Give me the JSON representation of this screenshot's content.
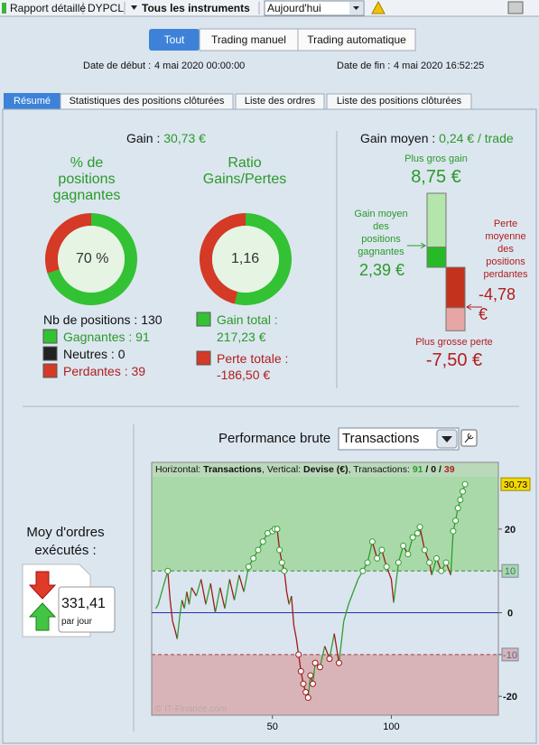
{
  "toolbar": {
    "report": "Rapport détaillé",
    "account": "DYPCL",
    "instruments": "Tous les instruments",
    "period": "Aujourd'hui"
  },
  "mode_tabs": [
    "Tout",
    "Trading manuel",
    "Trading automatique"
  ],
  "dates": {
    "start_label": "Date de début :",
    "start": "4 mai 2020 00:00:00",
    "end_label": "Date de fin :",
    "end": "4 mai 2020 16:52:25"
  },
  "tabs": [
    "Résumé",
    "Statistiques des positions clôturées",
    "Liste des ordres",
    "Liste des positions clôturées"
  ],
  "summary": {
    "gain_label": "Gain :",
    "gain": "30,73 €",
    "win_rate": {
      "title": "% de positions gagnantes",
      "label": "70 %"
    },
    "ratio": {
      "title": "Ratio Gains/Pertes",
      "label": "1,16"
    },
    "positions": {
      "label": "Nb de positions :",
      "value": 130
    },
    "wins": {
      "label": "Gagnantes :",
      "value": 91,
      "color": "#33c233"
    },
    "neutral": {
      "label": "Neutres :",
      "value": 0,
      "color": "#222222"
    },
    "losses": {
      "label": "Perdantes :",
      "value": 39,
      "color": "#d43a26"
    },
    "gain_total": {
      "label": "Gain total :",
      "value": 217.23,
      "value_label": "217,23 €",
      "color": "#33c233"
    },
    "loss_total": {
      "label": "Perte totale :",
      "value": -186.5,
      "value_label": "-186,50 €",
      "color": "#d43a26"
    }
  },
  "average": {
    "label": "Gain moyen :",
    "value": "0,24 € / trade",
    "max_gain": {
      "label": "Plus gros gain",
      "value": 8.75,
      "value_label": "8,75 €",
      "color": "#b4e6ac"
    },
    "avg_gain": {
      "label": "Gain moyen des positions gagnantes",
      "value": 2.39,
      "value_label": "2,39 €",
      "color": "#26bb26"
    },
    "avg_loss": {
      "label": "Perte moyenne des positions perdantes",
      "value": -4.78,
      "value_label": "-4,78 €",
      "color": "#c2321c"
    },
    "max_loss": {
      "label": "Plus grosse perte",
      "value": -7.5,
      "value_label": "-7,50 €",
      "color": "#e6a6a6"
    }
  },
  "orders": {
    "title": "Moy d'ordres exécutés :",
    "value": "331,41",
    "unit": "par jour"
  },
  "chart_data": {
    "type": "line",
    "title": "Performance brute",
    "selector": "Transactions",
    "header": {
      "h_label": "Horizontal: ",
      "h_value": "Transactions",
      "v_label": ", Vertical: ",
      "v_value": "Devise (€)",
      "t_label": ", Transactions: ",
      "wins": 91,
      "neutral": 0,
      "losses": 39,
      "sep": " / "
    },
    "watermark": "© IT-Finance.com",
    "end_label": "30,73",
    "up_color": "#2e9e2e",
    "down_color": "#a01818",
    "zones": {
      "upper": 10,
      "lower": -10
    },
    "x": [
      1,
      2,
      3,
      4,
      5,
      6,
      7,
      8,
      9,
      10,
      11,
      12,
      13,
      14,
      15,
      16,
      18,
      20,
      22,
      24,
      26,
      28,
      30,
      32,
      34,
      36,
      38,
      40,
      42,
      44,
      46,
      48,
      50,
      51,
      52,
      53,
      54,
      55,
      56,
      57,
      58,
      59,
      60,
      61,
      62,
      63,
      64,
      65,
      66,
      67,
      68,
      70,
      72,
      74,
      76,
      78,
      80,
      82,
      84,
      86,
      88,
      90,
      92,
      94,
      96,
      98,
      100,
      101,
      103,
      105,
      107,
      109,
      111,
      112,
      114,
      116,
      117,
      119,
      121,
      123,
      125,
      126,
      127,
      128,
      129,
      130,
      131
    ],
    "values": [
      1,
      2,
      4,
      6,
      8,
      10,
      3,
      -2,
      -4,
      -6.3,
      -1,
      3,
      1,
      5,
      2,
      6,
      4,
      8,
      2,
      7,
      0,
      6,
      1,
      8,
      3,
      9,
      5,
      11,
      13,
      15,
      17,
      19,
      19.5,
      20,
      20,
      15,
      12,
      10,
      5,
      2,
      4,
      -3,
      -6,
      -10,
      -14,
      -17,
      -19,
      -20.3,
      -15,
      -17,
      -12,
      -13,
      -8,
      -11,
      -5,
      -12,
      -2,
      2,
      5,
      8,
      10,
      12,
      17,
      13,
      15,
      11,
      8,
      2.4,
      12,
      16,
      14,
      18,
      19,
      20.5,
      15,
      12,
      9,
      13,
      10,
      12,
      9,
      19.5,
      22,
      25,
      27,
      29,
      30.73
    ],
    "xlim": [
      0,
      145
    ],
    "ylim": [
      -24.5,
      32.5
    ],
    "xticks": [
      50,
      100
    ],
    "yticks": [
      -20,
      -10,
      0,
      10,
      20
    ]
  }
}
